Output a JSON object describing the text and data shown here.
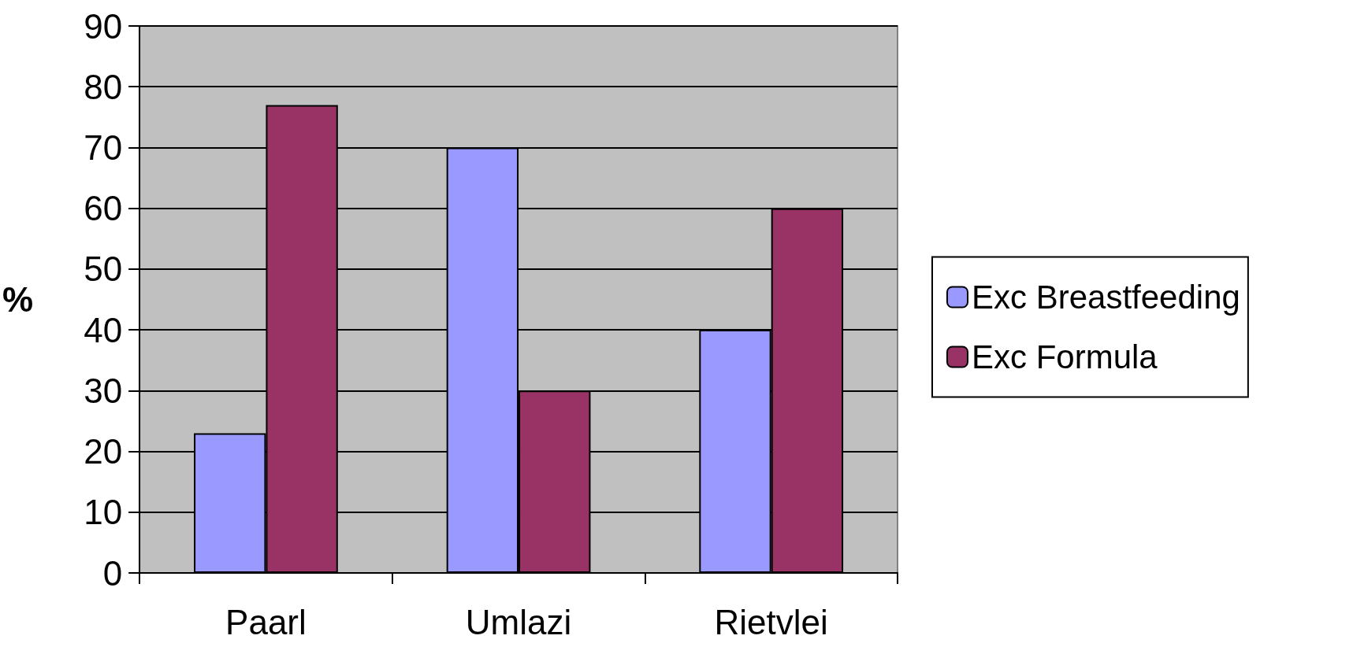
{
  "chart_data": {
    "type": "bar",
    "ylabel": "%",
    "categories": [
      "Paarl",
      "Umlazi",
      "Rietvlei"
    ],
    "series": [
      {
        "name": "Exc Breastfeeding",
        "color": "#9999ff",
        "values": [
          23,
          70,
          40
        ]
      },
      {
        "name": "Exc Formula",
        "color": "#993366",
        "values": [
          77,
          30,
          60
        ]
      }
    ],
    "ylim": [
      0,
      90
    ],
    "yticks": [
      0,
      10,
      20,
      30,
      40,
      50,
      60,
      70,
      80,
      90
    ],
    "grid": "y",
    "legend": "right"
  }
}
